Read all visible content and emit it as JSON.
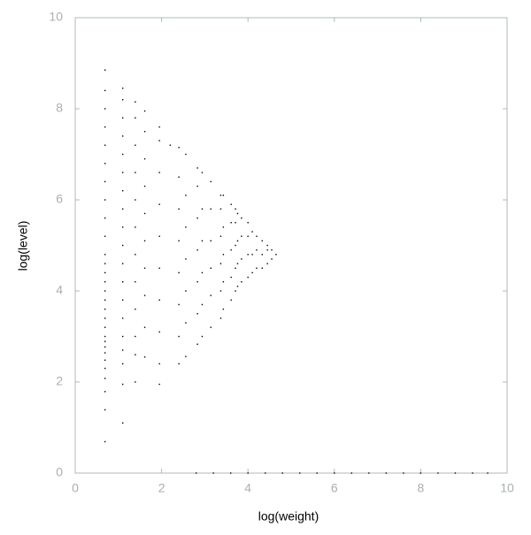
{
  "chart_data": {
    "type": "scatter",
    "x_label": "log(weight)",
    "y_label": "log(level)",
    "color": "#000000",
    "xlim": [
      0,
      10
    ],
    "ylim": [
      0,
      10
    ],
    "xticks": [
      0,
      2,
      4,
      6,
      8,
      10
    ],
    "yticks": [
      0,
      2,
      4,
      6,
      8,
      10
    ],
    "x": [
      0.69,
      0.69,
      0.69,
      0.69,
      0.69,
      0.69,
      0.69,
      0.69,
      0.69,
      0.69,
      0.69,
      0.69,
      0.69,
      0.69,
      0.69,
      0.69,
      0.69,
      0.69,
      0.69,
      0.69,
      0.69,
      0.69,
      0.69,
      0.69,
      0.69,
      0.69,
      0.69,
      0.69,
      0.69,
      1.1,
      1.1,
      1.1,
      1.1,
      1.1,
      1.1,
      1.1,
      1.1,
      1.1,
      1.1,
      1.1,
      1.1,
      1.1,
      1.1,
      1.1,
      1.1,
      1.1,
      1.1,
      1.1,
      1.39,
      1.39,
      1.39,
      1.39,
      1.39,
      1.39,
      1.39,
      1.39,
      1.39,
      1.39,
      1.39,
      1.39,
      1.61,
      1.61,
      1.61,
      1.61,
      1.61,
      1.61,
      1.61,
      1.61,
      1.61,
      1.61,
      1.95,
      1.95,
      1.95,
      1.95,
      1.95,
      1.95,
      1.95,
      1.95,
      1.95,
      1.95,
      2.2,
      2.4,
      2.4,
      2.4,
      2.4,
      2.4,
      2.4,
      2.4,
      2.4,
      2.56,
      2.56,
      2.56,
      2.56,
      2.56,
      2.56,
      2.56,
      2.83,
      2.83,
      2.83,
      2.83,
      2.83,
      2.83,
      2.83,
      2.94,
      2.94,
      2.94,
      2.94,
      2.94,
      2.94,
      3.14,
      3.14,
      3.14,
      3.14,
      3.14,
      3.14,
      3.37,
      3.37,
      3.37,
      3.37,
      3.37,
      3.37,
      3.43,
      3.43,
      3.43,
      3.43,
      3.43,
      3.61,
      3.61,
      3.61,
      3.61,
      3.61,
      3.71,
      3.71,
      3.71,
      3.71,
      3.71,
      3.76,
      3.76,
      3.76,
      3.76,
      3.85,
      3.85,
      3.85,
      3.85,
      4.0,
      4.0,
      4.0,
      4.0,
      4.1,
      4.1,
      4.1,
      4.2,
      4.2,
      4.2,
      4.33,
      4.33,
      4.33,
      4.45,
      4.45,
      4.45,
      4.55,
      4.55,
      4.65,
      2.8,
      3.2,
      3.6,
      4.0,
      4.4,
      4.8,
      5.2,
      5.6,
      6.0,
      6.4,
      6.8,
      7.2,
      7.6,
      8.0,
      8.4,
      8.8,
      9.2,
      9.55
    ],
    "values": [
      0.69,
      1.39,
      1.79,
      2.08,
      2.3,
      2.48,
      2.64,
      2.77,
      2.89,
      3.0,
      3.2,
      3.4,
      3.6,
      3.8,
      4.0,
      4.2,
      4.4,
      4.6,
      4.8,
      5.2,
      5.6,
      6.0,
      6.4,
      6.8,
      7.2,
      7.6,
      8.0,
      8.4,
      8.85,
      1.1,
      1.95,
      2.4,
      2.7,
      3.0,
      3.4,
      3.8,
      4.2,
      4.6,
      5.0,
      5.4,
      5.8,
      6.2,
      6.6,
      7.0,
      7.4,
      7.8,
      8.2,
      8.45,
      2.0,
      2.6,
      3.0,
      3.6,
      4.2,
      4.8,
      5.4,
      6.0,
      6.6,
      7.2,
      7.8,
      8.15,
      2.55,
      3.2,
      3.9,
      4.5,
      5.1,
      5.7,
      6.3,
      6.9,
      7.5,
      7.95,
      1.95,
      2.4,
      3.1,
      3.8,
      4.5,
      5.2,
      5.9,
      6.6,
      7.3,
      7.6,
      7.2,
      2.4,
      3.0,
      3.7,
      4.4,
      5.1,
      5.8,
      6.5,
      7.15,
      2.56,
      3.3,
      4.0,
      4.7,
      5.4,
      6.1,
      7.0,
      2.83,
      3.5,
      4.2,
      4.9,
      5.6,
      6.3,
      6.7,
      3.0,
      3.7,
      4.4,
      5.1,
      5.8,
      6.6,
      3.2,
      3.9,
      4.5,
      5.1,
      5.8,
      6.4,
      3.4,
      4.0,
      4.6,
      5.2,
      5.8,
      6.1,
      3.6,
      4.2,
      4.8,
      5.4,
      6.1,
      3.8,
      4.3,
      4.9,
      5.5,
      5.9,
      4.0,
      4.5,
      5.0,
      5.5,
      5.8,
      4.1,
      4.6,
      5.1,
      5.7,
      4.2,
      4.7,
      5.2,
      5.6,
      4.3,
      4.8,
      5.2,
      5.5,
      4.4,
      4.8,
      5.3,
      4.5,
      4.9,
      5.2,
      4.5,
      4.8,
      5.1,
      4.6,
      4.9,
      5.0,
      4.7,
      4.9,
      4.8,
      0,
      0,
      0,
      0,
      0,
      0,
      0,
      0,
      0,
      0,
      0,
      0,
      0,
      0,
      0,
      0,
      0,
      0
    ]
  }
}
